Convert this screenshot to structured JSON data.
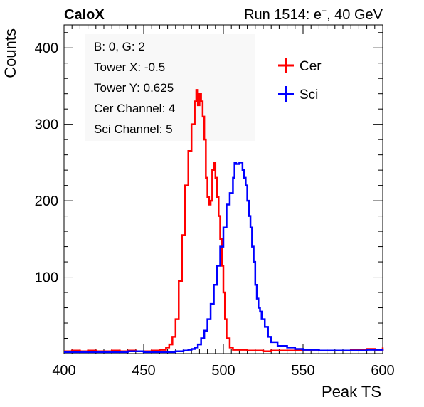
{
  "header": {
    "left_title": "CaloX",
    "right_title_prefix": "Run 1514: e",
    "right_title_sup": "+",
    "right_title_suffix": ", 40 GeV"
  },
  "info_box": {
    "lines": [
      "B: 0, G: 2",
      "Tower X: -0.5",
      "Tower Y: 0.625",
      "Cer Channel: 4",
      "Sci Channel: 5"
    ]
  },
  "chart_data": {
    "type": "line",
    "xlabel": "Peak TS",
    "ylabel": "Counts",
    "xlim": [
      400,
      600
    ],
    "ylim": [
      0,
      430
    ],
    "x_ticks": [
      400,
      450,
      500,
      550,
      600
    ],
    "y_ticks": [
      100,
      200,
      300,
      400
    ],
    "legend_position": "top-right",
    "series": [
      {
        "name": "Cer",
        "color": "#ff0000",
        "points": [
          [
            400,
            3
          ],
          [
            405,
            4
          ],
          [
            410,
            3
          ],
          [
            415,
            4
          ],
          [
            420,
            3
          ],
          [
            425,
            3
          ],
          [
            430,
            4
          ],
          [
            435,
            3
          ],
          [
            440,
            4
          ],
          [
            445,
            3
          ],
          [
            450,
            3
          ],
          [
            455,
            4
          ],
          [
            460,
            5
          ],
          [
            464,
            8
          ],
          [
            466,
            12
          ],
          [
            468,
            22
          ],
          [
            470,
            45
          ],
          [
            472,
            95
          ],
          [
            474,
            155
          ],
          [
            476,
            220
          ],
          [
            478,
            265
          ],
          [
            480,
            300
          ],
          [
            482,
            330
          ],
          [
            483,
            345
          ],
          [
            484,
            325
          ],
          [
            485,
            340
          ],
          [
            486,
            330
          ],
          [
            487,
            310
          ],
          [
            488,
            280
          ],
          [
            489,
            230
          ],
          [
            490,
            205
          ],
          [
            491,
            195
          ],
          [
            492,
            200
          ],
          [
            493,
            240
          ],
          [
            494,
            250
          ],
          [
            495,
            230
          ],
          [
            496,
            205
          ],
          [
            497,
            180
          ],
          [
            498,
            150
          ],
          [
            499,
            115
          ],
          [
            500,
            80
          ],
          [
            501,
            45
          ],
          [
            502,
            20
          ],
          [
            504,
            8
          ],
          [
            506,
            5
          ],
          [
            510,
            5
          ],
          [
            515,
            4
          ],
          [
            520,
            4
          ],
          [
            525,
            3
          ],
          [
            530,
            4
          ],
          [
            540,
            4
          ],
          [
            550,
            5
          ],
          [
            560,
            4
          ],
          [
            570,
            4
          ],
          [
            580,
            5
          ],
          [
            590,
            6
          ],
          [
            595,
            5
          ],
          [
            600,
            8
          ]
        ]
      },
      {
        "name": "Sci",
        "color": "#0000ff",
        "points": [
          [
            400,
            2
          ],
          [
            410,
            2
          ],
          [
            420,
            2
          ],
          [
            430,
            2
          ],
          [
            440,
            3
          ],
          [
            450,
            2
          ],
          [
            460,
            2
          ],
          [
            470,
            3
          ],
          [
            475,
            4
          ],
          [
            478,
            5
          ],
          [
            480,
            6
          ],
          [
            482,
            8
          ],
          [
            484,
            12
          ],
          [
            486,
            20
          ],
          [
            488,
            30
          ],
          [
            490,
            45
          ],
          [
            492,
            65
          ],
          [
            494,
            90
          ],
          [
            496,
            115
          ],
          [
            498,
            140
          ],
          [
            500,
            165
          ],
          [
            502,
            195
          ],
          [
            504,
            210
          ],
          [
            506,
            230
          ],
          [
            507,
            250
          ],
          [
            508,
            248
          ],
          [
            510,
            250
          ],
          [
            512,
            240
          ],
          [
            513,
            230
          ],
          [
            514,
            220
          ],
          [
            515,
            200
          ],
          [
            516,
            180
          ],
          [
            517,
            165
          ],
          [
            518,
            140
          ],
          [
            519,
            120
          ],
          [
            520,
            90
          ],
          [
            521,
            72
          ],
          [
            522,
            60
          ],
          [
            523,
            55
          ],
          [
            524,
            45
          ],
          [
            526,
            35
          ],
          [
            528,
            22
          ],
          [
            530,
            15
          ],
          [
            534,
            10
          ],
          [
            540,
            8
          ],
          [
            545,
            6
          ],
          [
            550,
            5
          ],
          [
            560,
            4
          ],
          [
            570,
            4
          ],
          [
            580,
            4
          ],
          [
            590,
            5
          ],
          [
            595,
            5
          ],
          [
            600,
            6
          ]
        ]
      }
    ]
  }
}
